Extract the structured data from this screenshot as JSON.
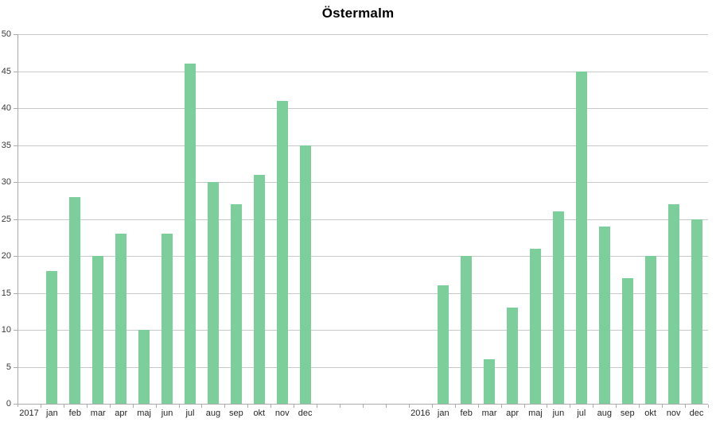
{
  "chart_data": {
    "type": "bar",
    "title": "Östermalm",
    "xlabel": "",
    "ylabel": "",
    "ylim": [
      0,
      50
    ],
    "yticks": [
      0,
      5,
      10,
      15,
      20,
      25,
      30,
      35,
      40,
      45,
      50
    ],
    "grid": true,
    "legend_position": "none",
    "gap_slots_between_groups": 4,
    "series": [
      {
        "name": "2017",
        "categories": [
          "jan",
          "feb",
          "mar",
          "apr",
          "maj",
          "jun",
          "jul",
          "aug",
          "sep",
          "okt",
          "nov",
          "dec"
        ],
        "values": [
          18,
          28,
          20,
          23,
          10,
          23,
          46,
          30,
          27,
          31,
          41,
          35
        ]
      },
      {
        "name": "2016",
        "categories": [
          "jan",
          "feb",
          "mar",
          "apr",
          "maj",
          "jun",
          "jul",
          "aug",
          "sep",
          "okt",
          "nov",
          "dec"
        ],
        "values": [
          16,
          20,
          6,
          13,
          21,
          26,
          45,
          24,
          17,
          20,
          27,
          25
        ]
      }
    ],
    "colors": {
      "bar": "#7CCE9B",
      "gridline": "#C9C9C9",
      "axis": "#ABABAB",
      "y_label": "#3A3A3A",
      "x_label": "#262626",
      "title": "#000000",
      "background": "#FFFFFF"
    }
  }
}
